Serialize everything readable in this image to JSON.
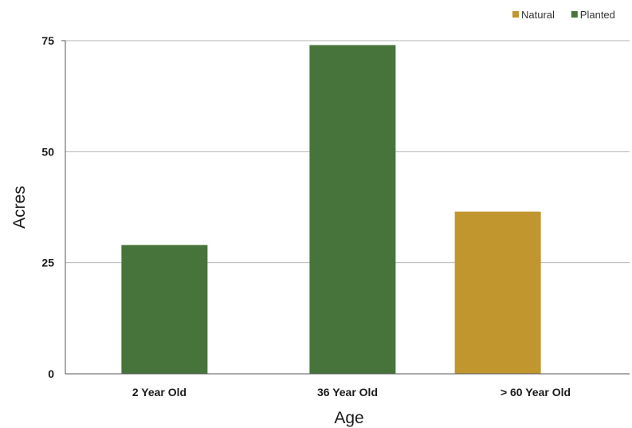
{
  "chart_data": {
    "type": "bar",
    "categories": [
      "2 Year Old",
      "36 Year Old",
      "> 60 Year Old"
    ],
    "series": [
      {
        "name": "Natural",
        "color": "#C2962E",
        "values": [
          0,
          0,
          36.5
        ]
      },
      {
        "name": "Planted",
        "color": "#47743A",
        "values": [
          29,
          74,
          0
        ]
      }
    ],
    "xlabel": "Age",
    "ylabel": "Acres",
    "ylim": [
      0,
      75
    ],
    "yticks": [
      0,
      25,
      50,
      75
    ],
    "grid": true,
    "legend_position": "top-right"
  }
}
